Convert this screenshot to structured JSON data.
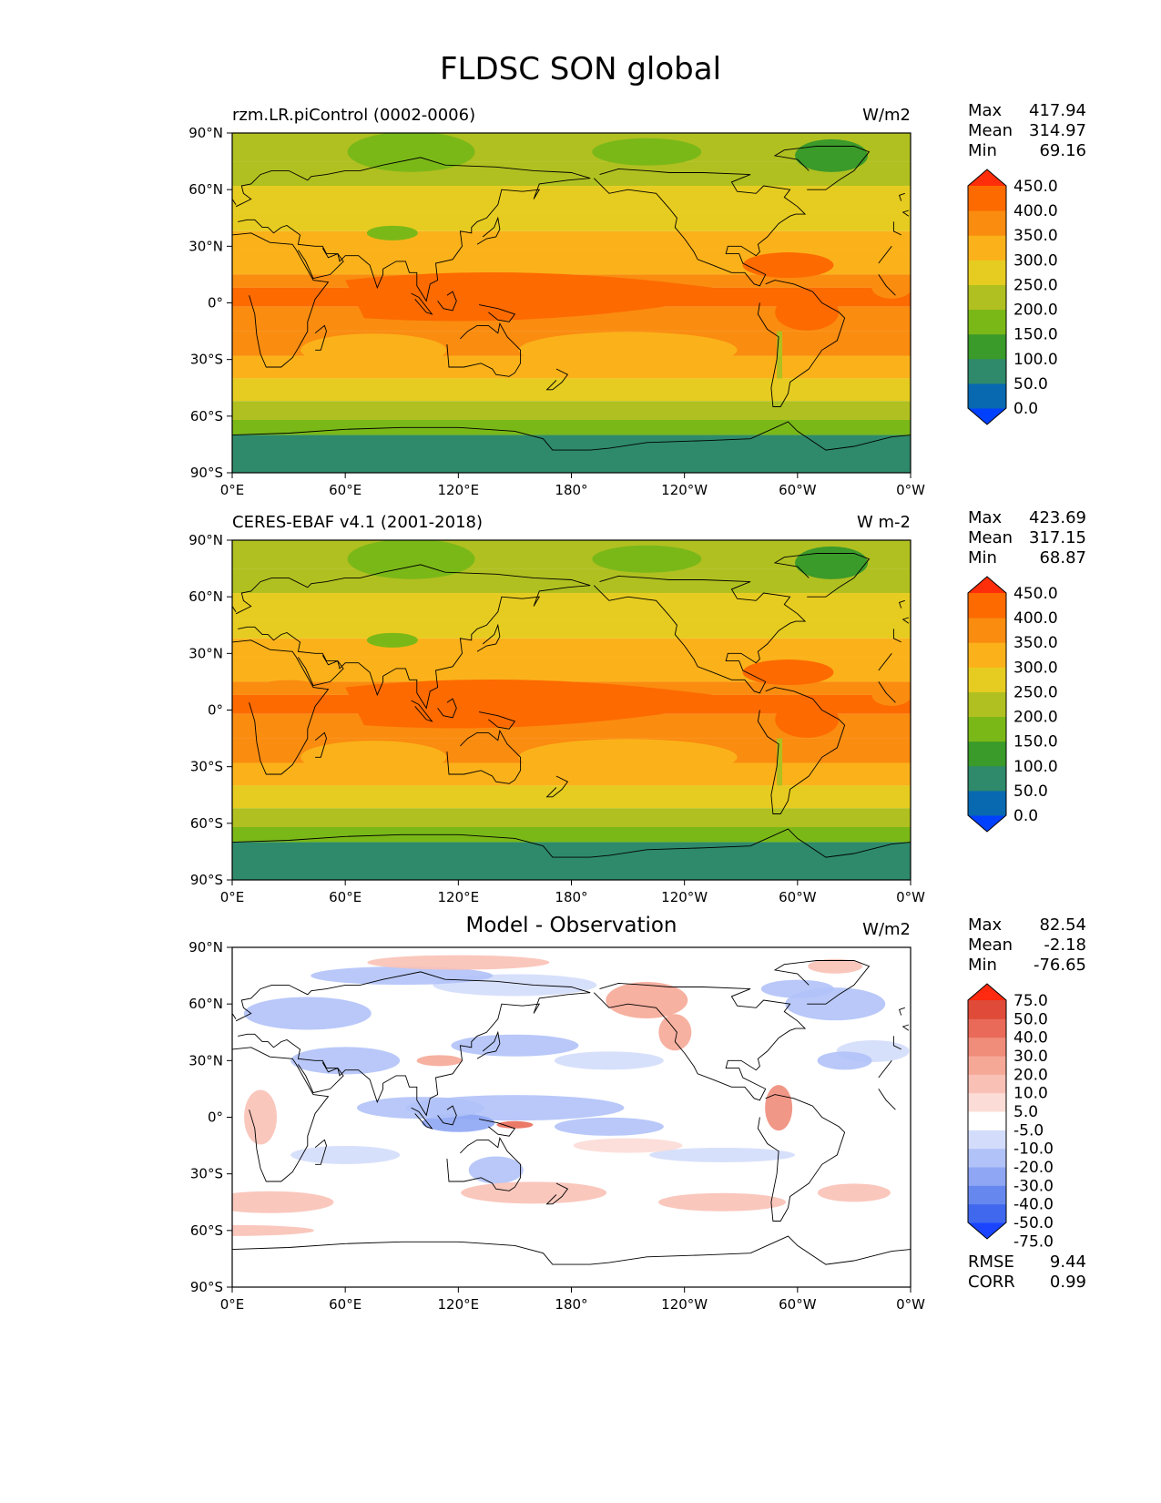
{
  "figure": {
    "title": "FLDSC SON global"
  },
  "axes": {
    "y_ticks": [
      "90°N",
      "60°N",
      "30°N",
      "0°",
      "30°S",
      "60°S",
      "90°S"
    ],
    "x_ticks": [
      "0°E",
      "60°E",
      "120°E",
      "180°",
      "120°W",
      "60°W",
      "0°W"
    ]
  },
  "colors": {
    "abs_levels": [
      "#0040ff",
      "#0868b0",
      "#2e8a6a",
      "#3a9a2a",
      "#7ab818",
      "#b0c020",
      "#e6cc20",
      "#fbb21a",
      "#fa8c10",
      "#fd6a00",
      "#ff2e0a"
    ],
    "diff_levels": [
      "#1a44ff",
      "#3f68ee",
      "#6688ee",
      "#8ea6f4",
      "#b1c2f8",
      "#d3ddfb",
      "#ffffff",
      "#fcdcd6",
      "#f9c1b6",
      "#f6a897",
      "#f08c7a",
      "#e96a58",
      "#e04a38",
      "#ff2a10"
    ]
  },
  "panels": [
    {
      "title": "rzm.LR.piControl (0002-0006)",
      "units": "W/m2",
      "stats": [
        {
          "label": "Max",
          "value": "417.94"
        },
        {
          "label": "Mean",
          "value": "314.97"
        },
        {
          "label": "Min",
          "value": "69.16"
        }
      ],
      "colorbar_labels": [
        "450.0",
        "400.0",
        "350.0",
        "300.0",
        "250.0",
        "200.0",
        "150.0",
        "100.0",
        "50.0",
        "0.0"
      ]
    },
    {
      "title": "CERES-EBAF v4.1 (2001-2018)",
      "units": "W m-2",
      "stats": [
        {
          "label": "Max",
          "value": "423.69"
        },
        {
          "label": "Mean",
          "value": "317.15"
        },
        {
          "label": "Min",
          "value": "68.87"
        }
      ],
      "colorbar_labels": [
        "450.0",
        "400.0",
        "350.0",
        "300.0",
        "250.0",
        "200.0",
        "150.0",
        "100.0",
        "50.0",
        "0.0"
      ]
    },
    {
      "title": "Model - Observation",
      "units": "W/m2",
      "stats": [
        {
          "label": "Max",
          "value": "82.54"
        },
        {
          "label": "Mean",
          "value": "-2.18"
        },
        {
          "label": "Min",
          "value": "-76.65"
        }
      ],
      "colorbar_labels": [
        "75.0",
        "50.0",
        "40.0",
        "30.0",
        "20.0",
        "10.0",
        "5.0",
        "-5.0",
        "-10.0",
        "-20.0",
        "-30.0",
        "-40.0",
        "-50.0",
        "-75.0"
      ],
      "diagnostics": [
        {
          "label": "RMSE",
          "value": "9.44"
        },
        {
          "label": "CORR",
          "value": "0.99"
        }
      ]
    }
  ],
  "chart_data": [
    {
      "type": "heatmap",
      "title": "rzm.LR.piControl (0002-0006)",
      "units": "W/m2",
      "x_range": [
        0,
        360
      ],
      "y_range": [
        -90,
        90
      ],
      "contour_levels": [
        0,
        50,
        100,
        150,
        200,
        250,
        300,
        350,
        400,
        450
      ],
      "zonal_band_values": [
        {
          "lat": [
            60,
            90
          ],
          "value": 200
        },
        {
          "lat": [
            30,
            60
          ],
          "value": 275
        },
        {
          "lat": [
            15,
            30
          ],
          "value": 350
        },
        {
          "lat": [
            -10,
            15
          ],
          "value": 400
        },
        {
          "lat": [
            -30,
            -10
          ],
          "value": 350
        },
        {
          "lat": [
            -45,
            -30
          ],
          "value": 325
        },
        {
          "lat": [
            -60,
            -45
          ],
          "value": 260
        },
        {
          "lat": [
            -70,
            -60
          ],
          "value": 200
        },
        {
          "lat": [
            -90,
            -70
          ],
          "value": 100
        }
      ],
      "max": 417.94,
      "mean": 314.97,
      "min": 69.16
    },
    {
      "type": "heatmap",
      "title": "CERES-EBAF v4.1 (2001-2018)",
      "units": "W m-2",
      "x_range": [
        0,
        360
      ],
      "y_range": [
        -90,
        90
      ],
      "contour_levels": [
        0,
        50,
        100,
        150,
        200,
        250,
        300,
        350,
        400,
        450
      ],
      "zonal_band_values": [
        {
          "lat": [
            60,
            90
          ],
          "value": 200
        },
        {
          "lat": [
            30,
            60
          ],
          "value": 275
        },
        {
          "lat": [
            15,
            30
          ],
          "value": 350
        },
        {
          "lat": [
            -10,
            15
          ],
          "value": 410
        },
        {
          "lat": [
            -30,
            -10
          ],
          "value": 360
        },
        {
          "lat": [
            -45,
            -30
          ],
          "value": 325
        },
        {
          "lat": [
            -60,
            -45
          ],
          "value": 260
        },
        {
          "lat": [
            -70,
            -60
          ],
          "value": 200
        },
        {
          "lat": [
            -90,
            -70
          ],
          "value": 100
        }
      ],
      "max": 423.69,
      "mean": 317.15,
      "min": 68.87
    },
    {
      "type": "heatmap",
      "title": "Model - Observation",
      "units": "W/m2",
      "x_range": [
        0,
        360
      ],
      "y_range": [
        -90,
        90
      ],
      "contour_levels": [
        -75,
        -50,
        -40,
        -30,
        -20,
        -10,
        -5,
        5,
        10,
        20,
        30,
        40,
        50,
        75
      ],
      "max": 82.54,
      "mean": -2.18,
      "min": -76.65,
      "rmse": 9.44,
      "corr": 0.99
    }
  ]
}
